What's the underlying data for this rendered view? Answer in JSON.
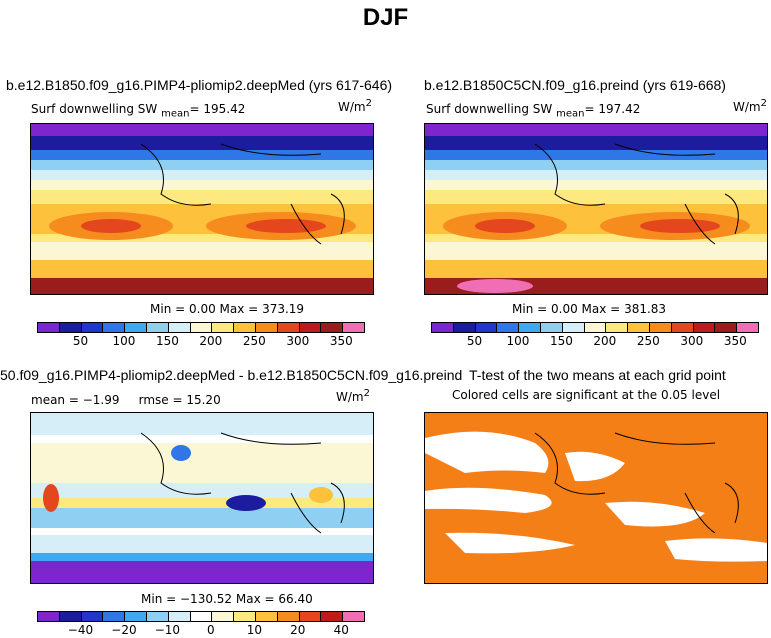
{
  "page_title": "DJF",
  "chart_data": [
    {
      "type": "heatmap",
      "title": "b.e12.B1850.f09_g16.PIMP4-pliomip2.deepMed (yrs 617-646)",
      "variable": "Surf downwelling SW",
      "stat_label": "mean",
      "stat_value": "195.42",
      "units": "W/m",
      "units_exp": "2",
      "min_label": "Min =",
      "min_value": "0.00",
      "max_label": "Max =",
      "max_value": "373.19",
      "colorbar_ticks": [
        "50",
        "100",
        "150",
        "200",
        "250",
        "300",
        "350"
      ],
      "colorbar_colors": [
        "#7d26cd",
        "#1c1c9e",
        "#2236ce",
        "#2f76e6",
        "#3ea9ee",
        "#8fd0f2",
        "#d5eef7",
        "#fbf7d5",
        "#fde97f",
        "#fdc13b",
        "#f68b1e",
        "#e4461d",
        "#c01a1a",
        "#9b1c1c",
        "#f06fb4"
      ]
    },
    {
      "type": "heatmap",
      "title": "b.e12.B1850C5CN.f09_g16.preind (yrs 619-668)",
      "variable": "Surf downwelling SW",
      "stat_label": "mean",
      "stat_value": "197.42",
      "units": "W/m",
      "units_exp": "2",
      "min_label": "Min =",
      "min_value": "0.00",
      "max_label": "Max =",
      "max_value": "381.83",
      "colorbar_ticks": [
        "50",
        "100",
        "150",
        "200",
        "250",
        "300",
        "350"
      ],
      "colorbar_colors": [
        "#7d26cd",
        "#1c1c9e",
        "#2236ce",
        "#2f76e6",
        "#3ea9ee",
        "#8fd0f2",
        "#d5eef7",
        "#fbf7d5",
        "#fde97f",
        "#fdc13b",
        "#f68b1e",
        "#e4461d",
        "#c01a1a",
        "#9b1c1c",
        "#f06fb4"
      ]
    },
    {
      "type": "heatmap",
      "title": "50.f09_g16.PIMP4-pliomip2.deepMed - b.e12.B1850C5CN.f09_g16.preind",
      "mean_label": "mean =",
      "mean_value": "−1.99",
      "rmse_label": "rmse =",
      "rmse_value": "15.20",
      "units": "W/m",
      "units_exp": "2",
      "min_label": "Min =",
      "min_value": "−130.52",
      "max_label": "Max =",
      "max_value": "66.40",
      "colorbar_ticks": [
        "−40",
        "−20",
        "−10",
        "0",
        "10",
        "20",
        "40"
      ],
      "colorbar_colors": [
        "#7d26cd",
        "#1c1c9e",
        "#2236ce",
        "#2f76e6",
        "#3ea9ee",
        "#8fd0f2",
        "#d5eef7",
        "#ffffff",
        "#fbf7d5",
        "#fde97f",
        "#fdc13b",
        "#f68b1e",
        "#e4461d",
        "#c01a1a",
        "#f06fb4"
      ]
    },
    {
      "type": "heatmap",
      "title": "T-test of the two means at each grid point",
      "subtitle": "Colored cells are significant at the 0.05 level",
      "significance_color": "#f57f17"
    }
  ]
}
